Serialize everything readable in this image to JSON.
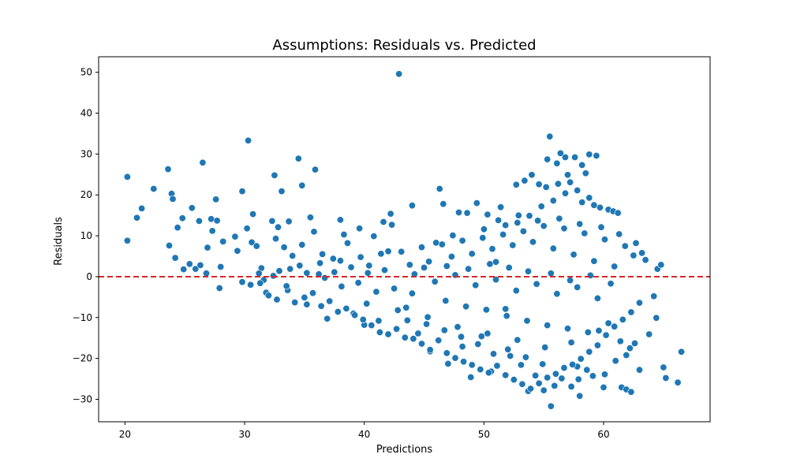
{
  "chart_data": {
    "type": "scatter",
    "title": "Assumptions: Residuals vs. Predicted",
    "xlabel": "Predictions",
    "ylabel": "Residuals",
    "xlim": [
      17.8,
      68.9
    ],
    "ylim": [
      -35.5,
      53.8
    ],
    "x_ticks": [
      20,
      30,
      40,
      50,
      60
    ],
    "y_ticks": [
      -30,
      -20,
      -10,
      0,
      10,
      20,
      30,
      40,
      50
    ],
    "x_tick_labels": [
      "20",
      "30",
      "40",
      "50",
      "60"
    ],
    "y_tick_labels": [
      "−30",
      "−20",
      "−10",
      "0",
      "10",
      "20",
      "30",
      "40",
      "50"
    ],
    "grid": false,
    "reference_line": {
      "y": 0,
      "color": "#d62728",
      "style": "dashed"
    },
    "point_color": "#1f77b4",
    "points": [
      [
        20.2,
        24.4
      ],
      [
        20.2,
        8.8
      ],
      [
        21.0,
        14.4
      ],
      [
        21.4,
        16.7
      ],
      [
        22.4,
        21.5
      ],
      [
        23.6,
        26.3
      ],
      [
        23.9,
        20.3
      ],
      [
        24.0,
        19.0
      ],
      [
        23.7,
        7.6
      ],
      [
        24.4,
        12.0
      ],
      [
        24.2,
        4.6
      ],
      [
        24.8,
        14.3
      ],
      [
        24.9,
        1.8
      ],
      [
        25.4,
        3.1
      ],
      [
        25.6,
        16.8
      ],
      [
        25.9,
        1.9
      ],
      [
        26.2,
        13.6
      ],
      [
        26.5,
        27.9
      ],
      [
        26.9,
        7.1
      ],
      [
        27.2,
        14.1
      ],
      [
        27.3,
        11.2
      ],
      [
        27.6,
        18.9
      ],
      [
        27.7,
        13.7
      ],
      [
        27.9,
        -2.8
      ],
      [
        28.2,
        8.6
      ],
      [
        28.0,
        2.4
      ],
      [
        26.3,
        2.8
      ],
      [
        26.8,
        0.8
      ],
      [
        29.2,
        9.8
      ],
      [
        29.4,
        6.3
      ],
      [
        29.8,
        20.9
      ],
      [
        30.3,
        33.3
      ],
      [
        30.2,
        11.8
      ],
      [
        30.7,
        15.3
      ],
      [
        30.6,
        8.4
      ],
      [
        31.0,
        7.5
      ],
      [
        31.4,
        2.1
      ],
      [
        31.6,
        -0.8
      ],
      [
        31.8,
        -3.9
      ],
      [
        32.3,
        13.6
      ],
      [
        32.5,
        24.8
      ],
      [
        32.6,
        9.3
      ],
      [
        32.8,
        12.1
      ],
      [
        33.1,
        20.9
      ],
      [
        33.3,
        7.2
      ],
      [
        33.6,
        -3.3
      ],
      [
        33.7,
        13.5
      ],
      [
        34.0,
        5.1
      ],
      [
        34.5,
        28.9
      ],
      [
        34.8,
        22.3
      ],
      [
        34.8,
        7.8
      ],
      [
        35.2,
        -6.8
      ],
      [
        35.5,
        14.5
      ],
      [
        35.9,
        26.2
      ],
      [
        35.8,
        11.0
      ],
      [
        36.2,
        0.6
      ],
      [
        36.5,
        5.5
      ],
      [
        36.9,
        -10.3
      ],
      [
        37.4,
        4.4
      ],
      [
        38.0,
        13.9
      ],
      [
        38.3,
        10.3
      ],
      [
        38.6,
        8.2
      ],
      [
        39.1,
        -9.0
      ],
      [
        39.6,
        11.8
      ],
      [
        40.0,
        -11.8
      ],
      [
        40.4,
        2.7
      ],
      [
        40.8,
        9.9
      ],
      [
        41.2,
        -10.8
      ],
      [
        41.6,
        13.4
      ],
      [
        42.0,
        6.2
      ],
      [
        42.2,
        15.4
      ],
      [
        42.3,
        12.7
      ],
      [
        42.9,
        49.6
      ],
      [
        43.5,
        -7.6
      ],
      [
        44.0,
        17.4
      ],
      [
        44.5,
        -13.9
      ],
      [
        45.0,
        2.2
      ],
      [
        45.5,
        -18.3
      ],
      [
        46.0,
        8.3
      ],
      [
        46.3,
        21.5
      ],
      [
        46.6,
        17.8
      ],
      [
        47.0,
        -21.3
      ],
      [
        47.4,
        10.1
      ],
      [
        47.9,
        15.7
      ],
      [
        48.2,
        -17.1
      ],
      [
        48.6,
        15.6
      ],
      [
        48.9,
        -24.6
      ],
      [
        49.4,
        18.0
      ],
      [
        49.8,
        -14.6
      ],
      [
        50.3,
        15.2
      ],
      [
        50.6,
        -23.2
      ],
      [
        51.0,
        3.6
      ],
      [
        51.4,
        17.0
      ],
      [
        51.8,
        -7.9
      ],
      [
        52.2,
        -19.4
      ],
      [
        52.7,
        22.5
      ],
      [
        53.1,
        -21.6
      ],
      [
        53.4,
        23.5
      ],
      [
        53.7,
        -28.0
      ],
      [
        54.0,
        24.9
      ],
      [
        54.3,
        -24.2
      ],
      [
        54.6,
        22.6
      ],
      [
        55.0,
        -27.8
      ],
      [
        55.3,
        28.7
      ],
      [
        55.5,
        34.3
      ],
      [
        55.6,
        -31.7
      ],
      [
        55.9,
        -26.7
      ],
      [
        56.1,
        27.7
      ],
      [
        56.4,
        30.2
      ],
      [
        56.8,
        29.2
      ],
      [
        57.0,
        24.9
      ],
      [
        57.3,
        -26.9
      ],
      [
        57.6,
        29.2
      ],
      [
        57.8,
        -22.0
      ],
      [
        58.0,
        -29.2
      ],
      [
        58.2,
        27.3
      ],
      [
        58.5,
        25.3
      ],
      [
        58.8,
        29.9
      ],
      [
        59.1,
        -24.3
      ],
      [
        59.4,
        29.6
      ],
      [
        59.7,
        16.9
      ],
      [
        60.0,
        -27.1
      ],
      [
        60.4,
        16.4
      ],
      [
        60.8,
        16.0
      ],
      [
        61.2,
        15.6
      ],
      [
        61.5,
        -27.1
      ],
      [
        61.9,
        -27.6
      ],
      [
        62.3,
        -28.2
      ],
      [
        62.5,
        5.2
      ],
      [
        63.0,
        -22.8
      ],
      [
        63.5,
        4.1
      ],
      [
        63.8,
        -14.1
      ],
      [
        64.2,
        -4.8
      ],
      [
        64.4,
        -10.1
      ],
      [
        64.5,
        1.9
      ],
      [
        64.8,
        2.9
      ],
      [
        65.0,
        -22.2
      ],
      [
        65.2,
        -24.8
      ],
      [
        66.2,
        -25.9
      ],
      [
        66.5,
        -18.4
      ],
      [
        29.8,
        -1.3
      ],
      [
        30.5,
        -2.0
      ],
      [
        31.3,
        -1.6
      ],
      [
        32.0,
        -4.6
      ],
      [
        32.7,
        -5.6
      ],
      [
        33.5,
        -2.3
      ],
      [
        34.2,
        -6.3
      ],
      [
        35.0,
        -5.1
      ],
      [
        35.7,
        -4.0
      ],
      [
        36.4,
        -7.2
      ],
      [
        37.1,
        -6.0
      ],
      [
        37.8,
        -8.6
      ],
      [
        38.5,
        -7.8
      ],
      [
        39.2,
        -9.4
      ],
      [
        39.9,
        -10.5
      ],
      [
        40.6,
        -11.9
      ],
      [
        41.3,
        -13.6
      ],
      [
        42.0,
        -14.1
      ],
      [
        42.7,
        -12.8
      ],
      [
        43.4,
        -14.9
      ],
      [
        44.1,
        -15.2
      ],
      [
        44.8,
        -16.4
      ],
      [
        45.5,
        -17.9
      ],
      [
        46.2,
        -15.6
      ],
      [
        46.9,
        -18.7
      ],
      [
        47.6,
        -19.9
      ],
      [
        48.3,
        -20.8
      ],
      [
        49.0,
        -21.6
      ],
      [
        49.7,
        -22.7
      ],
      [
        50.4,
        -23.5
      ],
      [
        51.1,
        -21.8
      ],
      [
        51.8,
        -24.1
      ],
      [
        52.5,
        -25.2
      ],
      [
        53.2,
        -26.3
      ],
      [
        53.9,
        -27.4
      ],
      [
        54.6,
        -26.1
      ],
      [
        55.3,
        -24.7
      ],
      [
        56.0,
        -23.8
      ],
      [
        56.7,
        -22.3
      ],
      [
        57.4,
        -21.5
      ],
      [
        58.1,
        -20.1
      ],
      [
        58.8,
        -18.4
      ],
      [
        59.5,
        -16.8
      ],
      [
        60.2,
        -14.3
      ],
      [
        60.9,
        -12.2
      ],
      [
        61.6,
        -10.5
      ],
      [
        62.3,
        -8.7
      ],
      [
        63.0,
        -6.4
      ],
      [
        31.2,
        0.8
      ],
      [
        32.9,
        1.4
      ],
      [
        34.6,
        2.7
      ],
      [
        36.3,
        3.3
      ],
      [
        38.0,
        3.9
      ],
      [
        39.7,
        4.8
      ],
      [
        41.4,
        5.6
      ],
      [
        43.1,
        6.1
      ],
      [
        44.8,
        7.2
      ],
      [
        46.5,
        7.9
      ],
      [
        48.2,
        8.8
      ],
      [
        49.9,
        9.5
      ],
      [
        51.6,
        10.3
      ],
      [
        53.3,
        11.1
      ],
      [
        55.0,
        12.4
      ],
      [
        56.7,
        11.8
      ],
      [
        58.4,
        10.6
      ],
      [
        60.1,
        9.1
      ],
      [
        61.8,
        7.5
      ],
      [
        63.2,
        5.8
      ],
      [
        44.2,
        0.6
      ],
      [
        45.9,
        -1.2
      ],
      [
        47.6,
        0.4
      ],
      [
        49.3,
        -2.1
      ],
      [
        51.0,
        -0.7
      ],
      [
        52.7,
        -3.4
      ],
      [
        54.4,
        -1.8
      ],
      [
        56.1,
        -4.2
      ],
      [
        57.8,
        -2.6
      ],
      [
        59.5,
        -5.3
      ],
      [
        46.8,
        -5.9
      ],
      [
        48.5,
        -7.3
      ],
      [
        50.2,
        -8.1
      ],
      [
        51.9,
        -9.6
      ],
      [
        53.6,
        -10.8
      ],
      [
        55.3,
        -11.9
      ],
      [
        57.0,
        -12.7
      ],
      [
        58.7,
        -13.6
      ],
      [
        60.4,
        -11.4
      ],
      [
        47.3,
        4.9
      ],
      [
        49.0,
        5.6
      ],
      [
        50.7,
        6.8
      ],
      [
        52.4,
        7.7
      ],
      [
        54.1,
        8.5
      ],
      [
        55.8,
        6.9
      ],
      [
        57.5,
        5.4
      ],
      [
        59.2,
        3.8
      ],
      [
        60.9,
        2.5
      ],
      [
        54.8,
        17.2
      ],
      [
        55.8,
        18.6
      ],
      [
        56.8,
        20.4
      ],
      [
        57.8,
        21.1
      ],
      [
        58.8,
        19.3
      ],
      [
        53.8,
        14.9
      ],
      [
        52.8,
        13.2
      ],
      [
        51.8,
        12.6
      ],
      [
        55.2,
        21.9
      ],
      [
        56.2,
        22.7
      ],
      [
        57.2,
        23.1
      ],
      [
        58.2,
        18.2
      ],
      [
        59.2,
        17.5
      ],
      [
        44.0,
        -4.1
      ],
      [
        42.5,
        -2.9
      ],
      [
        41.0,
        -3.7
      ],
      [
        39.5,
        -1.5
      ],
      [
        38.1,
        -2.4
      ],
      [
        36.7,
        -0.3
      ],
      [
        35.2,
        0.9
      ],
      [
        33.8,
        1.9
      ],
      [
        32.4,
        0.2
      ],
      [
        40.2,
        -6.6
      ],
      [
        42.8,
        -8.2
      ],
      [
        45.3,
        -9.9
      ],
      [
        47.8,
        -12.3
      ],
      [
        50.3,
        -13.9
      ],
      [
        52.8,
        -15.5
      ],
      [
        55.1,
        -17.3
      ],
      [
        57.3,
        -16.1
      ],
      [
        59.6,
        -13.2
      ],
      [
        61.4,
        -15.8
      ],
      [
        62.2,
        -17.5
      ],
      [
        37.5,
        1.1
      ],
      [
        38.9,
        2.3
      ],
      [
        40.3,
        0.9
      ],
      [
        41.7,
        1.6
      ],
      [
        43.8,
        2.9
      ],
      [
        45.4,
        3.7
      ],
      [
        46.9,
        2.6
      ],
      [
        48.7,
        1.9
      ],
      [
        50.5,
        3.1
      ],
      [
        52.1,
        2.2
      ],
      [
        53.7,
        1.3
      ],
      [
        55.6,
        0.8
      ],
      [
        57.2,
        -0.9
      ],
      [
        58.9,
        0.3
      ],
      [
        60.6,
        -1.7
      ],
      [
        50.0,
        11.6
      ],
      [
        51.2,
        13.8
      ],
      [
        52.9,
        15.0
      ],
      [
        54.5,
        13.7
      ],
      [
        56.3,
        14.2
      ],
      [
        58.0,
        12.9
      ],
      [
        59.8,
        12.1
      ],
      [
        61.3,
        10.4
      ],
      [
        62.7,
        8.2
      ],
      [
        54.9,
        -21.4
      ],
      [
        53.5,
        -19.7
      ],
      [
        52.0,
        -17.8
      ],
      [
        50.8,
        -18.9
      ],
      [
        49.5,
        -16.5
      ],
      [
        48.1,
        -14.7
      ],
      [
        46.7,
        -13.1
      ],
      [
        45.2,
        -11.6
      ],
      [
        43.6,
        -10.7
      ],
      [
        57.9,
        -25.1
      ],
      [
        56.5,
        -24.9
      ],
      [
        58.6,
        -22.8
      ],
      [
        60.1,
        -23.9
      ],
      [
        61.0,
        -20.6
      ],
      [
        61.9,
        -19.2
      ],
      [
        62.6,
        -16.3
      ]
    ]
  }
}
